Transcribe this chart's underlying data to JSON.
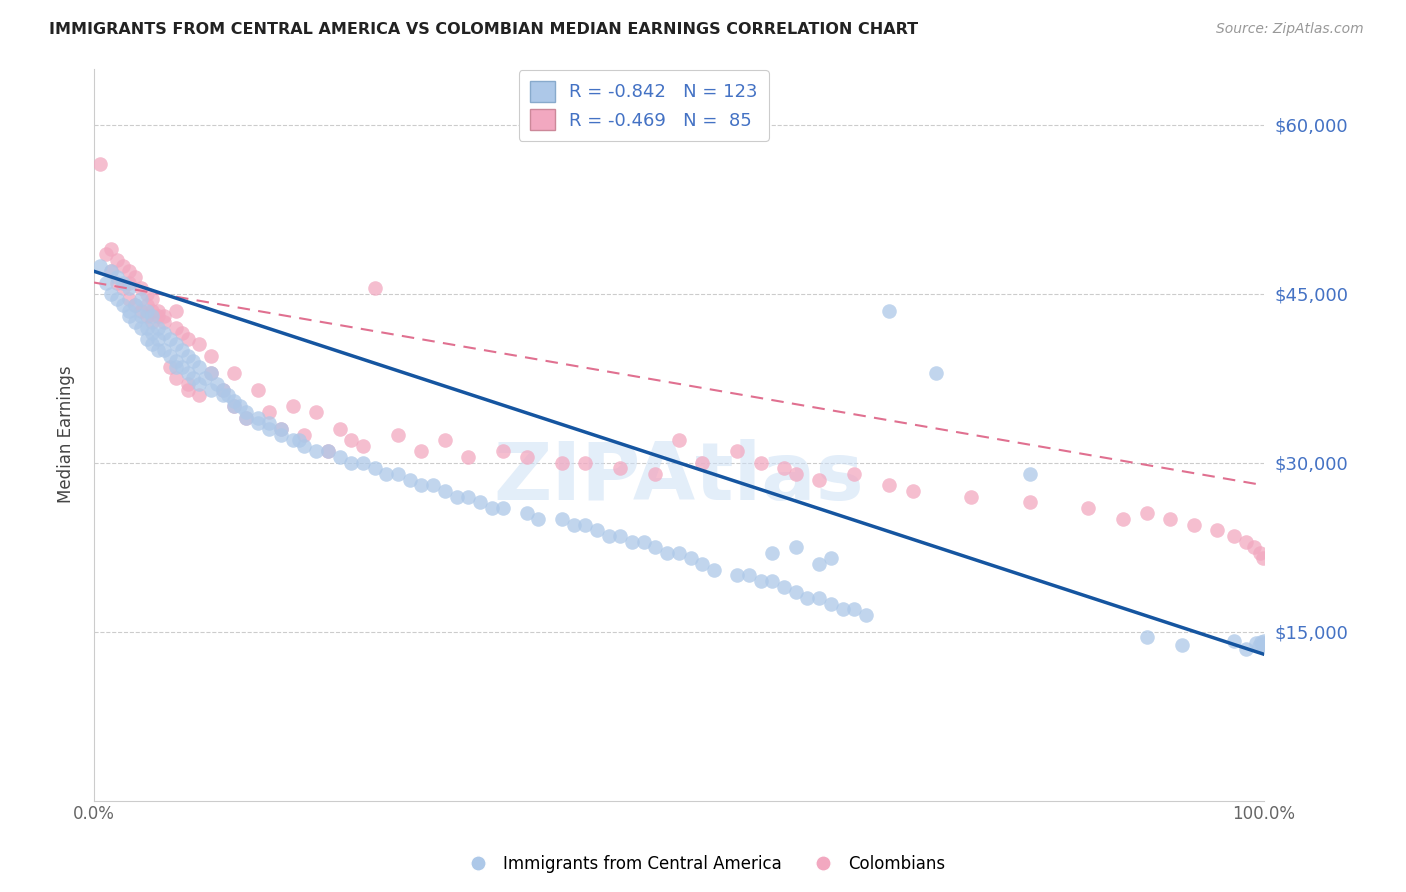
{
  "title": "IMMIGRANTS FROM CENTRAL AMERICA VS COLOMBIAN MEDIAN EARNINGS CORRELATION CHART",
  "source": "Source: ZipAtlas.com",
  "ylabel": "Median Earnings",
  "xlim": [
    0,
    1.0
  ],
  "ylim": [
    0,
    65000
  ],
  "xticklabels_left": "0.0%",
  "xticklabels_right": "100.0%",
  "ytick_vals": [
    0,
    15000,
    30000,
    45000,
    60000
  ],
  "ytick_labels": [
    "",
    "$15,000",
    "$30,000",
    "$45,000",
    "$60,000"
  ],
  "legend_R_blue": "-0.842",
  "legend_N_blue": "123",
  "legend_R_pink": "-0.469",
  "legend_N_pink": "85",
  "color_blue": "#adc8e8",
  "color_pink": "#f2a8c0",
  "line_blue": "#1555a0",
  "line_pink": "#e07090",
  "watermark_text": "ZIPAtlas",
  "blue_intercept": 47000,
  "blue_slope": -34000,
  "pink_intercept": 46000,
  "pink_slope": -18000,
  "legend_label_blue": "Immigrants from Central America",
  "legend_label_pink": "Colombians",
  "blue_x": [
    0.005,
    0.01,
    0.015,
    0.015,
    0.02,
    0.02,
    0.025,
    0.025,
    0.03,
    0.03,
    0.03,
    0.035,
    0.035,
    0.04,
    0.04,
    0.04,
    0.045,
    0.045,
    0.045,
    0.05,
    0.05,
    0.05,
    0.055,
    0.055,
    0.055,
    0.06,
    0.06,
    0.065,
    0.065,
    0.07,
    0.07,
    0.07,
    0.075,
    0.075,
    0.08,
    0.08,
    0.085,
    0.085,
    0.09,
    0.09,
    0.095,
    0.1,
    0.1,
    0.105,
    0.11,
    0.11,
    0.115,
    0.12,
    0.12,
    0.125,
    0.13,
    0.13,
    0.14,
    0.14,
    0.15,
    0.15,
    0.16,
    0.16,
    0.17,
    0.175,
    0.18,
    0.19,
    0.2,
    0.21,
    0.22,
    0.23,
    0.24,
    0.25,
    0.26,
    0.27,
    0.28,
    0.29,
    0.3,
    0.31,
    0.32,
    0.33,
    0.34,
    0.35,
    0.37,
    0.38,
    0.4,
    0.41,
    0.42,
    0.43,
    0.44,
    0.45,
    0.46,
    0.47,
    0.48,
    0.49,
    0.5,
    0.51,
    0.52,
    0.53,
    0.55,
    0.56,
    0.57,
    0.58,
    0.59,
    0.6,
    0.61,
    0.62,
    0.63,
    0.64,
    0.65,
    0.66,
    0.58,
    0.6,
    0.62,
    0.63,
    0.68,
    0.72,
    0.8,
    0.9,
    0.93,
    0.975,
    0.985,
    0.993,
    0.996,
    0.998,
    0.999,
    0.9995,
    0.9999
  ],
  "blue_y": [
    47500,
    46000,
    47000,
    45000,
    46500,
    44500,
    46000,
    44000,
    45500,
    43500,
    43000,
    44000,
    42500,
    44500,
    43000,
    42000,
    43500,
    42000,
    41000,
    43000,
    41500,
    40500,
    42000,
    41000,
    40000,
    41500,
    40000,
    41000,
    39500,
    40500,
    39000,
    38500,
    40000,
    38500,
    39500,
    38000,
    39000,
    37500,
    38500,
    37000,
    37500,
    38000,
    36500,
    37000,
    36500,
    36000,
    36000,
    35500,
    35000,
    35000,
    34500,
    34000,
    34000,
    33500,
    33500,
    33000,
    33000,
    32500,
    32000,
    32000,
    31500,
    31000,
    31000,
    30500,
    30000,
    30000,
    29500,
    29000,
    29000,
    28500,
    28000,
    28000,
    27500,
    27000,
    27000,
    26500,
    26000,
    26000,
    25500,
    25000,
    25000,
    24500,
    24500,
    24000,
    23500,
    23500,
    23000,
    23000,
    22500,
    22000,
    22000,
    21500,
    21000,
    20500,
    20000,
    20000,
    19500,
    19500,
    19000,
    18500,
    18000,
    18000,
    17500,
    17000,
    17000,
    16500,
    22000,
    22500,
    21000,
    21500,
    43500,
    38000,
    29000,
    14500,
    13800,
    14200,
    13500,
    14000,
    13700,
    14100,
    13600,
    13900,
    14200
  ],
  "pink_x": [
    0.005,
    0.01,
    0.015,
    0.015,
    0.02,
    0.02,
    0.025,
    0.025,
    0.03,
    0.03,
    0.03,
    0.035,
    0.035,
    0.04,
    0.04,
    0.045,
    0.045,
    0.05,
    0.05,
    0.055,
    0.06,
    0.065,
    0.07,
    0.07,
    0.08,
    0.08,
    0.09,
    0.1,
    0.11,
    0.12,
    0.13,
    0.14,
    0.15,
    0.16,
    0.17,
    0.18,
    0.19,
    0.2,
    0.21,
    0.22,
    0.23,
    0.24,
    0.26,
    0.28,
    0.3,
    0.32,
    0.35,
    0.37,
    0.4,
    0.42,
    0.45,
    0.48,
    0.5,
    0.52,
    0.55,
    0.57,
    0.59,
    0.6,
    0.62,
    0.65,
    0.68,
    0.7,
    0.75,
    0.8,
    0.85,
    0.88,
    0.9,
    0.92,
    0.94,
    0.96,
    0.975,
    0.985,
    0.992,
    0.997,
    0.999,
    0.045,
    0.05,
    0.055,
    0.06,
    0.07,
    0.075,
    0.08,
    0.09,
    0.1,
    0.12
  ],
  "pink_y": [
    56500,
    48500,
    49000,
    47000,
    48000,
    46000,
    47500,
    45500,
    47000,
    46000,
    44500,
    46500,
    44000,
    45500,
    43500,
    45000,
    43000,
    44500,
    42500,
    43500,
    43000,
    38500,
    43500,
    37500,
    37000,
    36500,
    36000,
    38000,
    36500,
    35000,
    34000,
    36500,
    34500,
    33000,
    35000,
    32500,
    34500,
    31000,
    33000,
    32000,
    31500,
    45500,
    32500,
    31000,
    32000,
    30500,
    31000,
    30500,
    30000,
    30000,
    29500,
    29000,
    32000,
    30000,
    31000,
    30000,
    29500,
    29000,
    28500,
    29000,
    28000,
    27500,
    27000,
    26500,
    26000,
    25000,
    25500,
    25000,
    24500,
    24000,
    23500,
    23000,
    22500,
    22000,
    21500,
    44000,
    43500,
    43000,
    42500,
    42000,
    41500,
    41000,
    40500,
    39500,
    38000
  ]
}
